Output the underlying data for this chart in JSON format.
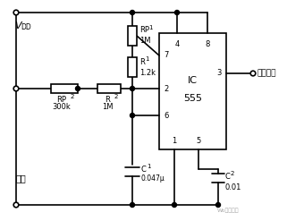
{
  "background_color": "#ffffff",
  "line_color": "#000000",
  "freq_label": "接频率计",
  "probe_label": "探头",
  "watermark": "Wo电工维库"
}
